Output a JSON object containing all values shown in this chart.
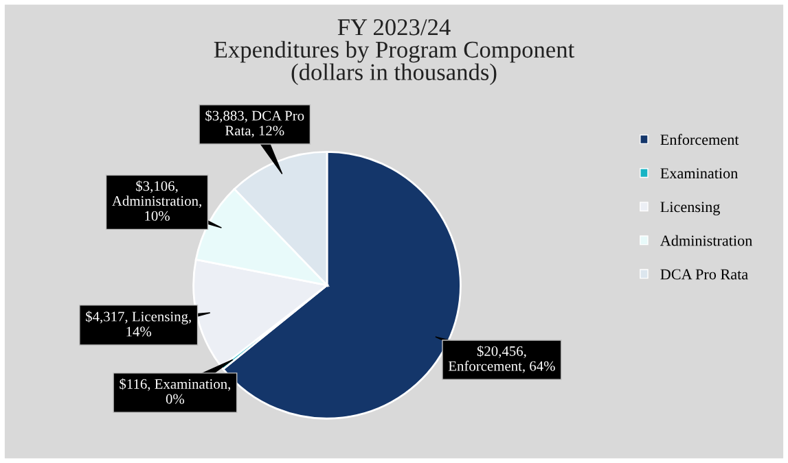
{
  "chart_data": {
    "type": "pie",
    "title": "FY 2023/24\nExpenditures by Program Component\n(dollars in thousands)",
    "categories": [
      "Enforcement",
      "Examination",
      "Licensing",
      "Administration",
      "DCA Pro Rata"
    ],
    "values": [
      20456,
      116,
      4317,
      3106,
      3883
    ],
    "colors": [
      "#14366a",
      "#17b4c4",
      "#eceff5",
      "#e8fafa",
      "#dce6ee"
    ],
    "value_labels": [
      "$20,456,\nEnforcement, 64%",
      "$116, Examination,\n0%",
      "$4,317, Licensing,\n14%",
      "$3,106,\nAdministration,\n10%",
      "$3,883, DCA Pro\nRata, 12%"
    ],
    "legend": "right"
  }
}
